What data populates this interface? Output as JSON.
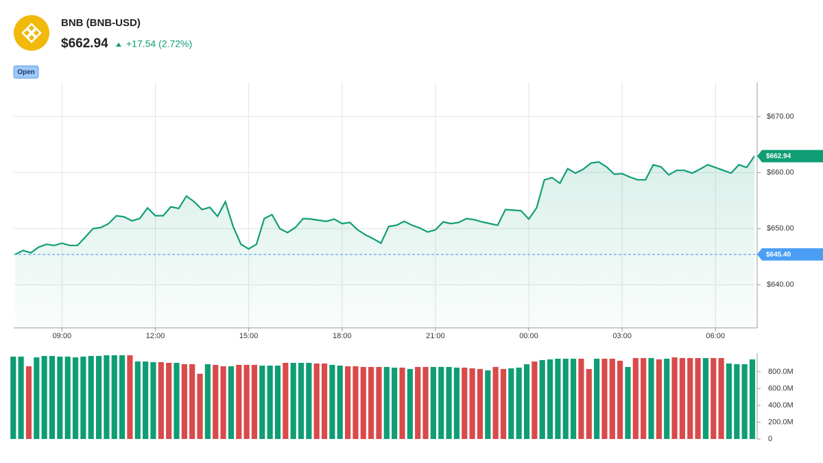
{
  "header": {
    "title": "BNB (BNB-USD)",
    "price": "$662.94",
    "change": "+17.54 (2.72%)",
    "badge": "Open"
  },
  "chart_data": [
    {
      "type": "line",
      "color": "#0f9d74",
      "x": [
        7.5,
        7.75,
        8,
        8.25,
        8.5,
        8.75,
        9,
        9.25,
        9.5,
        9.75,
        10,
        10.25,
        10.5,
        10.75,
        11,
        11.25,
        11.5,
        11.75,
        12,
        12.25,
        12.5,
        12.75,
        13,
        13.25,
        13.5,
        13.75,
        14,
        14.25,
        14.5,
        14.75,
        15,
        15.25,
        15.5,
        15.75,
        16,
        16.25,
        16.5,
        16.75,
        17,
        17.25,
        17.5,
        17.75,
        18,
        18.25,
        18.5,
        18.75,
        19,
        19.25,
        19.5,
        19.75,
        20,
        20.25,
        20.5,
        20.75,
        21,
        21.25,
        21.5,
        21.75,
        22,
        22.25,
        22.5,
        22.75,
        23,
        23.25,
        23.5,
        23.75,
        24,
        24.25,
        24.5,
        24.75,
        25,
        25.25,
        25.5,
        25.75,
        26,
        26.25,
        26.5,
        26.75,
        27,
        27.25,
        27.5,
        27.75,
        28,
        28.25,
        28.5,
        28.75,
        29,
        29.25,
        29.5,
        29.75,
        30,
        30.25,
        30.5,
        30.75,
        31,
        31.25
      ],
      "values": [
        645.4,
        646.1,
        645.7,
        646.7,
        647.2,
        647.0,
        647.4,
        647.0,
        647.0,
        648.5,
        650.0,
        650.2,
        650.9,
        652.3,
        652.1,
        651.4,
        651.8,
        653.7,
        652.3,
        652.3,
        653.9,
        653.6,
        655.8,
        654.8,
        653.4,
        653.8,
        652.2,
        654.8,
        650.4,
        647.2,
        646.4,
        647.2,
        651.8,
        652.5,
        650.0,
        649.3,
        650.2,
        651.8,
        651.7,
        651.5,
        651.3,
        651.7,
        650.9,
        651.1,
        649.8,
        648.9,
        648.2,
        647.4,
        650.4,
        650.6,
        651.3,
        650.6,
        650.1,
        649.4,
        649.8,
        651.2,
        650.9,
        651.1,
        651.8,
        651.6,
        651.2,
        650.9,
        650.6,
        653.4,
        653.3,
        653.2,
        651.7,
        653.7,
        658.7,
        659.1,
        658.1,
        660.7,
        659.9,
        660.6,
        661.7,
        661.9,
        661.0,
        659.7,
        659.8,
        659.2,
        658.7,
        658.7,
        661.4,
        661.0,
        659.6,
        660.4,
        660.4,
        659.9,
        660.6,
        661.4,
        660.9,
        660.4,
        659.9,
        661.4,
        660.9,
        662.94
      ],
      "xlim": [
        7.45,
        31.25
      ],
      "xticks": [
        {
          "value": 9,
          "label": "09:00"
        },
        {
          "value": 12,
          "label": "12:00"
        },
        {
          "value": 15,
          "label": "15:00"
        },
        {
          "value": 18,
          "label": "18:00"
        },
        {
          "value": 21,
          "label": "21:00"
        },
        {
          "value": 24,
          "label": "00:00"
        },
        {
          "value": 27,
          "label": "03:00"
        },
        {
          "value": 30,
          "label": "06:00"
        }
      ],
      "ylim": [
        632.3,
        676.1
      ],
      "yticks": [
        {
          "value": 640,
          "label": "$640.00"
        },
        {
          "value": 650,
          "label": "$650.00"
        },
        {
          "value": 660,
          "label": "$660.00"
        },
        {
          "value": 670,
          "label": "$670.00"
        }
      ],
      "grid": true,
      "last_price": 662.94,
      "last_price_label": "$662.94",
      "prev_close": 645.4,
      "prev_close_label": "$645.40",
      "prev_close_color": "#4a9ff5"
    },
    {
      "type": "bar",
      "up_color": "#0f9d74",
      "down_color": "#d94a4a",
      "values": [
        980,
        980,
        865,
        971,
        988,
        988,
        980,
        980,
        971,
        980,
        988,
        988,
        996,
        996,
        996,
        996,
        922,
        922,
        914,
        914,
        906,
        906,
        890,
        890,
        776,
        890,
        882,
        865,
        865,
        882,
        882,
        882,
        873,
        873,
        873,
        906,
        906,
        906,
        906,
        898,
        898,
        882,
        873,
        865,
        865,
        857,
        857,
        857,
        857,
        849,
        849,
        833,
        857,
        857,
        857,
        857,
        857,
        849,
        849,
        841,
        833,
        816,
        857,
        833,
        841,
        849,
        890,
        922,
        939,
        947,
        955,
        955,
        955,
        955,
        833,
        955,
        955,
        955,
        931,
        857,
        963,
        963,
        963,
        947,
        955,
        971,
        963,
        963,
        963,
        963,
        963,
        963,
        898,
        890,
        890,
        947
      ],
      "up": [
        true,
        true,
        false,
        true,
        true,
        true,
        true,
        true,
        true,
        true,
        true,
        true,
        true,
        true,
        true,
        false,
        true,
        true,
        true,
        false,
        false,
        true,
        false,
        false,
        false,
        true,
        false,
        false,
        true,
        false,
        false,
        false,
        true,
        true,
        true,
        false,
        true,
        true,
        true,
        false,
        false,
        true,
        true,
        false,
        false,
        false,
        false,
        false,
        true,
        true,
        false,
        true,
        false,
        false,
        true,
        true,
        true,
        true,
        false,
        false,
        false,
        true,
        false,
        false,
        true,
        true,
        true,
        false,
        true,
        true,
        true,
        true,
        true,
        false,
        false,
        true,
        false,
        false,
        false,
        true,
        false,
        false,
        true,
        false,
        true,
        false,
        false,
        false,
        false,
        true,
        false,
        false,
        true,
        true,
        true,
        true
      ],
      "ylim": [
        0,
        1020
      ],
      "yticks": [
        0,
        {
          "value": 200,
          "label": "200.0M"
        },
        {
          "value": 400,
          "label": "400.0M"
        },
        {
          "value": 600,
          "label": "600.0M"
        },
        {
          "value": 800,
          "label": "800.0M"
        }
      ]
    }
  ]
}
